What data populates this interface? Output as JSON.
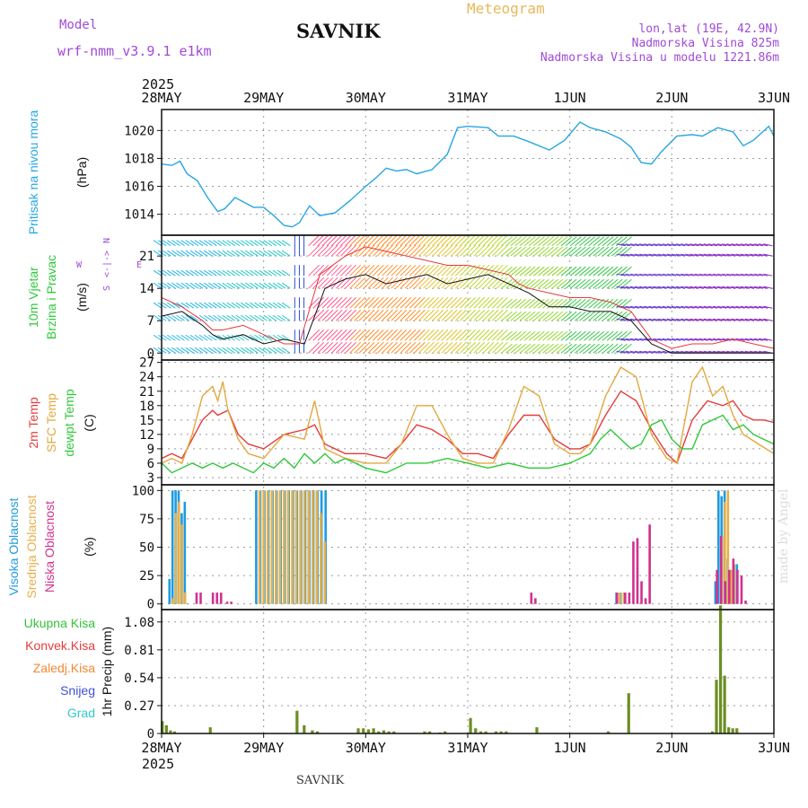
{
  "header": {
    "model_label": "Model",
    "model_name": "wrf-nmm_v3.9.1 e1km",
    "title": "SAVNIK",
    "subtitle": "Meteogram",
    "coords": "lon,lat (19E, 42.9N)",
    "elevation": "Nadmorska Visina 825m",
    "model_elevation": "Nadmorska Visina u modelu 1221.86m",
    "footer_station": "SAVNIK",
    "credit": "made by Angel"
  },
  "time_axis": {
    "year_label": "2025",
    "ticks": [
      "28MAY",
      "29MAY",
      "30MAY",
      "31MAY",
      "1JUN",
      "2JUN",
      "3JUN"
    ],
    "range_days": [
      0,
      6
    ]
  },
  "colors": {
    "pressure": "#27a7e0",
    "temp2m": "#e63b3b",
    "sfc": "#e3a83d",
    "dewpt": "#2fc93a",
    "high_cloud": "#1f9be0",
    "mid_cloud": "#e8b04a",
    "low_cloud": "#d0328f",
    "precip": "#6b8e23",
    "grid": "#9a9a9a"
  },
  "chart_data": [
    {
      "type": "line",
      "id": "pressure",
      "ylabel": "Pritisak na nivou mora",
      "unit": "(hPa)",
      "ylim": [
        1012.5,
        1021.5
      ],
      "yticks": [
        1014,
        1016,
        1018,
        1020
      ],
      "grid": true,
      "series": [
        {
          "x": [
            0,
            0.1,
            0.18,
            0.25,
            0.35,
            0.45,
            0.55,
            0.62,
            0.72,
            0.8,
            0.9,
            1.0,
            1.1,
            1.2,
            1.28,
            1.35,
            1.45,
            1.55,
            1.7,
            1.85,
            2.0,
            2.1,
            2.2,
            2.3,
            2.4,
            2.5,
            2.65,
            2.8,
            2.9,
            3.0,
            3.2,
            3.3,
            3.45,
            3.6,
            3.8,
            3.95,
            4.1,
            4.2,
            4.35,
            4.5,
            4.6,
            4.7,
            4.8,
            4.9,
            5.05,
            5.2,
            5.3,
            5.45,
            5.6,
            5.7,
            5.8,
            5.95,
            6.0
          ],
          "values": [
            1017.6,
            1017.5,
            1017.8,
            1016.9,
            1016.4,
            1015.2,
            1014.2,
            1014.4,
            1015.2,
            1014.9,
            1014.5,
            1014.5,
            1013.9,
            1013.2,
            1013.1,
            1013.4,
            1014.6,
            1013.9,
            1014.1,
            1015.0,
            1016.0,
            1016.6,
            1017.3,
            1017.1,
            1017.2,
            1016.9,
            1017.2,
            1018.3,
            1020.2,
            1020.3,
            1020.2,
            1019.6,
            1019.6,
            1019.2,
            1018.6,
            1019.3,
            1020.6,
            1020.2,
            1019.9,
            1019.4,
            1018.8,
            1017.7,
            1017.6,
            1018.5,
            1019.6,
            1019.7,
            1019.6,
            1020.2,
            1019.9,
            1018.9,
            1019.3,
            1020.3,
            1019.6
          ]
        }
      ]
    },
    {
      "type": "line",
      "id": "wind",
      "ylabel": "10m Vjetar",
      "ylabel2": "Brzina i Pravac",
      "unit": "(m/s)",
      "compass": {
        "n": "N",
        "s": "S",
        "e": "E",
        "w": "W",
        "arrow": "<-|->"
      },
      "ylim": [
        -1.5,
        25.5
      ],
      "yticks": [
        0,
        7,
        14,
        21
      ],
      "grid": true,
      "series": [
        {
          "name": "speed",
          "x": [
            0,
            0.2,
            0.4,
            0.5,
            0.6,
            0.8,
            1.0,
            1.2,
            1.4,
            1.6,
            1.8,
            2.0,
            2.2,
            2.4,
            2.6,
            2.8,
            3.0,
            3.2,
            3.4,
            3.6,
            3.8,
            4.0,
            4.2,
            4.4,
            4.6,
            4.8,
            5.0,
            5.2,
            5.4,
            5.6,
            5.8,
            6.0
          ],
          "values": [
            8,
            9,
            6,
            4,
            3,
            4,
            2,
            3,
            2,
            14,
            16,
            17,
            15,
            16,
            17,
            15,
            16,
            17,
            15,
            13,
            10,
            10,
            9,
            9,
            7,
            2,
            0,
            0,
            0,
            0,
            0,
            0
          ]
        },
        {
          "name": "gust",
          "x": [
            0,
            0.2,
            0.4,
            0.5,
            0.6,
            0.8,
            1.0,
            1.2,
            1.35,
            1.55,
            1.8,
            2.0,
            2.2,
            2.4,
            2.6,
            2.8,
            3.0,
            3.2,
            3.4,
            3.5,
            3.6,
            3.8,
            4.0,
            4.2,
            4.4,
            4.6,
            4.8,
            5.0,
            5.2,
            5.4,
            5.6,
            5.8,
            6.0
          ],
          "values": [
            12,
            10,
            7,
            5,
            5,
            6,
            4,
            2,
            2,
            17,
            21,
            23,
            22,
            21,
            20,
            19,
            19,
            18,
            17,
            15,
            14,
            13,
            12,
            12,
            11,
            9,
            3,
            1,
            2,
            2,
            3,
            2,
            1
          ]
        }
      ]
    },
    {
      "type": "line",
      "id": "temperature",
      "labels": [
        "2m Temp",
        "SFC Temp",
        "dewpt Temp"
      ],
      "unit": "(C)",
      "ylim": [
        1.5,
        27.5
      ],
      "yticks": [
        3,
        6,
        9,
        12,
        15,
        18,
        21,
        24,
        27
      ],
      "grid": true,
      "series": [
        {
          "name": "2m Temp",
          "x": [
            0,
            0.1,
            0.2,
            0.3,
            0.4,
            0.5,
            0.55,
            0.65,
            0.75,
            0.85,
            1.0,
            1.2,
            1.4,
            1.5,
            1.6,
            1.8,
            2.0,
            2.2,
            2.35,
            2.5,
            2.65,
            2.8,
            2.95,
            3.1,
            3.25,
            3.4,
            3.55,
            3.7,
            3.85,
            4.0,
            4.1,
            4.2,
            4.35,
            4.5,
            4.65,
            4.8,
            4.95,
            5.05,
            5.2,
            5.35,
            5.5,
            5.6,
            5.7,
            5.8,
            5.9,
            6.0
          ],
          "values": [
            7,
            8,
            7,
            11,
            15,
            17,
            16,
            17,
            12,
            10,
            9,
            12,
            13,
            14,
            10,
            8,
            8,
            7,
            10,
            14,
            13,
            11,
            8,
            8,
            7,
            12,
            16,
            16,
            11,
            9,
            9,
            10,
            16,
            21,
            19,
            13,
            8,
            6,
            15,
            19,
            18,
            19,
            16,
            15,
            15,
            14.5
          ]
        },
        {
          "name": "SFC Temp",
          "x": [
            0,
            0.1,
            0.2,
            0.3,
            0.4,
            0.5,
            0.55,
            0.6,
            0.65,
            0.75,
            0.85,
            1.0,
            1.2,
            1.4,
            1.5,
            1.6,
            1.8,
            2.0,
            2.2,
            2.35,
            2.5,
            2.65,
            2.8,
            2.95,
            3.1,
            3.25,
            3.4,
            3.55,
            3.7,
            3.85,
            4.0,
            4.1,
            4.2,
            4.35,
            4.5,
            4.65,
            4.8,
            4.95,
            5.05,
            5.2,
            5.3,
            5.4,
            5.5,
            5.6,
            5.7,
            5.85,
            6.0
          ],
          "values": [
            6,
            7,
            6,
            12,
            20,
            22,
            19,
            23,
            17,
            11,
            8,
            7,
            12,
            11,
            19,
            9,
            7,
            6,
            6,
            10,
            18,
            18,
            12,
            7,
            6,
            6,
            13,
            22,
            20,
            10,
            8,
            8,
            10,
            20,
            26,
            24,
            12,
            7,
            6,
            23,
            26,
            20,
            22,
            16,
            12,
            10,
            8
          ]
        },
        {
          "name": "dewpt Temp",
          "x": [
            0,
            0.1,
            0.2,
            0.3,
            0.4,
            0.5,
            0.6,
            0.7,
            0.8,
            0.9,
            1.0,
            1.1,
            1.2,
            1.3,
            1.4,
            1.5,
            1.6,
            1.7,
            1.8,
            2.0,
            2.2,
            2.4,
            2.6,
            2.8,
            3.0,
            3.2,
            3.4,
            3.6,
            3.8,
            4.0,
            4.1,
            4.2,
            4.3,
            4.4,
            4.5,
            4.6,
            4.7,
            4.8,
            4.9,
            5.0,
            5.1,
            5.2,
            5.3,
            5.4,
            5.5,
            5.6,
            5.7,
            5.8,
            5.9,
            6.0
          ],
          "values": [
            6,
            4,
            5,
            6,
            5,
            6,
            5,
            6,
            5,
            4,
            6,
            5,
            7,
            5,
            8,
            6,
            8,
            6,
            7,
            5,
            4,
            6,
            6,
            7,
            6,
            5,
            6,
            5,
            5,
            6,
            7,
            8,
            11,
            13,
            11,
            9,
            10,
            14,
            15,
            11,
            9,
            9,
            14,
            15,
            16,
            13,
            14,
            12,
            11,
            10
          ]
        }
      ]
    },
    {
      "type": "bar",
      "id": "clouds",
      "labels": [
        "Visoka Oblacnost",
        "Srednja Oblacnost",
        "Niska Oblacnost"
      ],
      "unit": "(%)",
      "ylim": [
        -5,
        105
      ],
      "yticks": [
        0,
        25,
        50,
        75,
        100
      ],
      "grid": true,
      "series": [
        {
          "name": "Visoka Oblacnost",
          "x": [
            0.1,
            0.13,
            0.16,
            0.19,
            0.22,
            0.25,
            0.28,
            0.95,
            0.99,
            1.03,
            1.07,
            1.11,
            1.15,
            1.19,
            1.23,
            1.27,
            1.31,
            1.35,
            1.39,
            1.43,
            1.47,
            1.51,
            1.55,
            1.59,
            1.63,
            4.48,
            4.52,
            5.45,
            5.48,
            5.51,
            5.54,
            5.57,
            5.6,
            5.63,
            5.66
          ],
          "values": [
            22,
            100,
            100,
            100,
            80,
            90,
            0,
            100,
            100,
            100,
            100,
            100,
            100,
            100,
            100,
            100,
            100,
            100,
            100,
            100,
            100,
            100,
            100,
            100,
            100,
            10,
            10,
            20,
            100,
            95,
            100,
            40,
            30,
            10,
            35
          ]
        },
        {
          "name": "Srednja Oblacnost",
          "x": [
            0.11,
            0.14,
            0.17,
            0.2,
            0.23,
            0.96,
            1.0,
            1.04,
            1.08,
            1.12,
            1.16,
            1.2,
            1.24,
            1.28,
            1.32,
            1.36,
            1.4,
            1.44,
            1.48,
            1.52,
            1.56,
            1.6,
            4.49,
            4.53,
            5.49,
            5.52,
            5.55,
            5.58,
            5.61
          ],
          "values": [
            5,
            80,
            90,
            70,
            10,
            100,
            100,
            100,
            100,
            100,
            100,
            100,
            100,
            100,
            100,
            100,
            100,
            100,
            100,
            100,
            80,
            55,
            10,
            10,
            60,
            90,
            100,
            30,
            35
          ]
        },
        {
          "name": "Niska Oblacnost",
          "x": [
            0.32,
            0.36,
            0.48,
            0.52,
            0.56,
            0.62,
            0.66,
            3.6,
            3.64,
            4.44,
            4.52,
            4.56,
            4.6,
            4.64,
            4.68,
            4.72,
            4.76,
            5.42,
            5.46,
            5.5,
            5.54,
            5.58,
            5.62,
            5.66,
            5.7
          ],
          "values": [
            10,
            10,
            10,
            10,
            10,
            2,
            2,
            10,
            5,
            10,
            10,
            10,
            55,
            58,
            20,
            5,
            70,
            30,
            60,
            20,
            30,
            40,
            30,
            25,
            3
          ]
        }
      ]
    },
    {
      "type": "bar",
      "id": "precip",
      "labels": [
        "Ukupna Kisa",
        "Konvek.Kisa",
        "Zaledj.Kisa",
        "Snijeg",
        "Grad"
      ],
      "label_colors": [
        "#33c23a",
        "#e63b3b",
        "#f08a33",
        "#3f50d6",
        "#30c9c9"
      ],
      "ylabel": "1hr Precip (mm)",
      "ylim": [
        0,
        1.2
      ],
      "yticks": [
        0,
        0.27,
        0.54,
        0.81,
        1.08
      ],
      "grid": true,
      "series": [
        {
          "name": "Ukupna Kisa",
          "x": [
            0.03,
            0.07,
            0.11,
            0.15,
            0.5,
            1.35,
            1.42,
            1.5,
            1.55,
            1.95,
            2.0,
            2.05,
            2.1,
            2.15,
            2.2,
            2.25,
            2.3,
            2.6,
            2.65,
            2.75,
            2.8,
            3.05,
            3.1,
            3.15,
            3.2,
            3.3,
            3.35,
            3.4,
            3.7,
            4.4,
            4.6,
            5.42,
            5.46,
            5.5,
            5.54,
            5.58,
            5.62,
            5.66
          ],
          "values": [
            0.12,
            0.08,
            0.03,
            0.02,
            0.06,
            0.22,
            0.08,
            0.03,
            0.02,
            0.05,
            0.05,
            0.04,
            0.05,
            0.02,
            0.03,
            0.02,
            0.02,
            0.02,
            0.02,
            0.01,
            0.02,
            0.15,
            0.05,
            0.02,
            0.02,
            0.02,
            0.02,
            0.02,
            0.06,
            0.02,
            0.39,
            0.02,
            0.52,
            1.24,
            0.56,
            0.06,
            0.05,
            0.05
          ]
        }
      ]
    }
  ]
}
